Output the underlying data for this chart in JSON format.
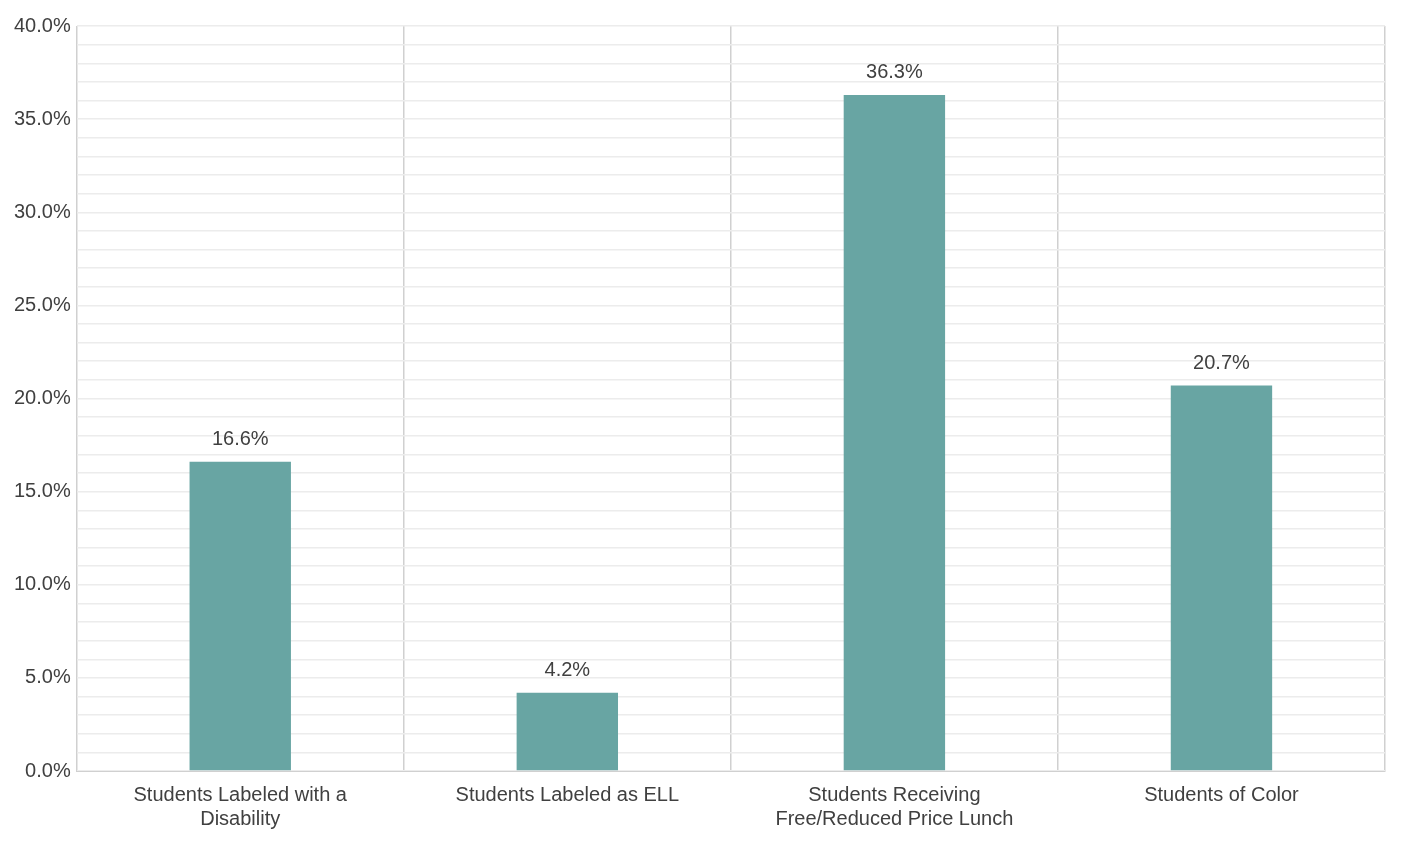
{
  "chart_data": {
    "type": "bar",
    "categories": [
      "Students Labeled with a Disability",
      "Students Labeled as ELL",
      "Students Receiving Free/Reduced Price Lunch",
      "Students of Color"
    ],
    "values": [
      16.6,
      4.2,
      36.3,
      20.7
    ],
    "value_labels": [
      "16.6%",
      "4.2%",
      "36.3%",
      "20.7%"
    ],
    "color": "#68a5a3",
    "ylim": [
      0,
      40
    ],
    "yticks": [
      {
        "value": 0,
        "label": "0.0%"
      },
      {
        "value": 1,
        "label": null
      },
      {
        "value": 2,
        "label": null
      },
      {
        "value": 3,
        "label": null
      },
      {
        "value": 4,
        "label": null
      },
      {
        "value": 5,
        "label": "5.0%"
      },
      {
        "value": 6,
        "label": null
      },
      {
        "value": 7,
        "label": null
      },
      {
        "value": 8,
        "label": null
      },
      {
        "value": 9,
        "label": null
      },
      {
        "value": 10,
        "label": "10.0%"
      },
      {
        "value": 11,
        "label": null
      },
      {
        "value": 12,
        "label": null
      },
      {
        "value": 13,
        "label": null
      },
      {
        "value": 14,
        "label": null
      },
      {
        "value": 15,
        "label": "15.0%"
      },
      {
        "value": 16,
        "label": null
      },
      {
        "value": 17,
        "label": null
      },
      {
        "value": 18,
        "label": null
      },
      {
        "value": 19,
        "label": null
      },
      {
        "value": 20,
        "label": "20.0%"
      },
      {
        "value": 21,
        "label": null
      },
      {
        "value": 22,
        "label": null
      },
      {
        "value": 23,
        "label": null
      },
      {
        "value": 24,
        "label": null
      },
      {
        "value": 25,
        "label": "25.0%"
      },
      {
        "value": 26,
        "label": null
      },
      {
        "value": 27,
        "label": null
      },
      {
        "value": 28,
        "label": null
      },
      {
        "value": 29,
        "label": null
      },
      {
        "value": 30,
        "label": "30.0%"
      },
      {
        "value": 31,
        "label": null
      },
      {
        "value": 32,
        "label": null
      },
      {
        "value": 33,
        "label": null
      },
      {
        "value": 34,
        "label": null
      },
      {
        "value": 35,
        "label": "35.0%"
      },
      {
        "value": 36,
        "label": null
      },
      {
        "value": 37,
        "label": null
      },
      {
        "value": 38,
        "label": null
      },
      {
        "value": 39,
        "label": null
      },
      {
        "value": 40,
        "label": "40.0%"
      }
    ],
    "grid": true,
    "legend": false
  }
}
